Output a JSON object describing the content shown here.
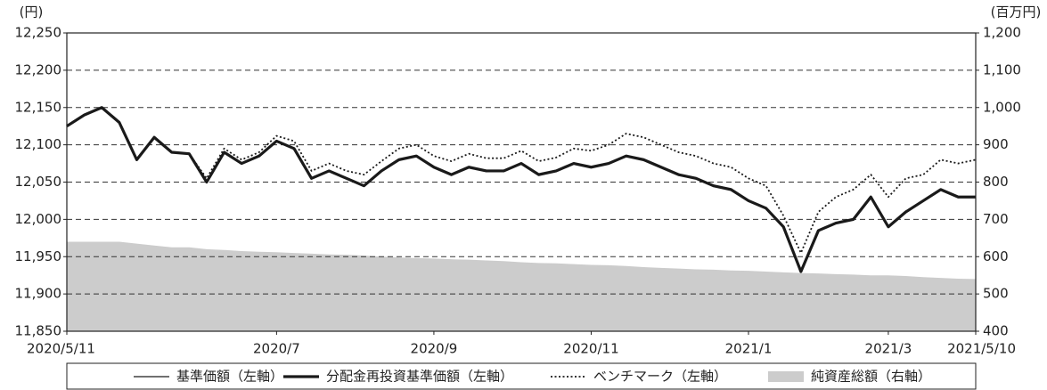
{
  "chart_data": {
    "type": "line",
    "y_unit": "(円)",
    "y2_unit": "(百万円)",
    "categories": [
      "2020/5/11",
      null,
      null,
      null,
      null,
      null,
      null,
      null,
      null,
      null,
      null,
      null,
      "2020/7",
      null,
      null,
      null,
      null,
      null,
      null,
      null,
      null,
      "2020/9",
      null,
      null,
      null,
      null,
      null,
      null,
      null,
      null,
      "2020/11",
      null,
      null,
      null,
      null,
      null,
      null,
      null,
      null,
      "2021/1",
      null,
      null,
      null,
      null,
      null,
      null,
      null,
      "2021/3",
      null,
      null,
      null,
      null,
      "2021/5/10"
    ],
    "ylim": [
      11850,
      12250
    ],
    "yticks": [
      {
        "value": 11850,
        "label": "11,850"
      },
      {
        "value": 11900,
        "label": "11,900"
      },
      {
        "value": 11950,
        "label": "11,950"
      },
      {
        "value": 12000,
        "label": "12,000"
      },
      {
        "value": 12050,
        "label": "12,050"
      },
      {
        "value": 12100,
        "label": "12,100"
      },
      {
        "value": 12150,
        "label": "12,150"
      },
      {
        "value": 12200,
        "label": "12,200"
      },
      {
        "value": 12250,
        "label": "12,250"
      }
    ],
    "y2lim": [
      400,
      1200
    ],
    "y2ticks": [
      400,
      500,
      600,
      700,
      800,
      900,
      {
        "value": 1000,
        "label": "1,000"
      },
      {
        "value": 1100,
        "label": "1,100"
      },
      {
        "value": 1200,
        "label": "1,200"
      }
    ],
    "grid": true,
    "series": [
      {
        "name": "基準価額（左軸）",
        "color": "#1a1a1a",
        "style": "thin",
        "values": [
          12125,
          12140,
          12150,
          12130,
          12080,
          12110,
          12090,
          12088,
          12050,
          12090,
          12075,
          12085,
          12105,
          12095,
          12055,
          12065,
          12055,
          12045,
          12065,
          12080,
          12085,
          12070,
          12060,
          12070,
          12065,
          12065,
          12075,
          12060,
          12065,
          12075,
          12070,
          12075,
          12085,
          12080,
          12070,
          12060,
          12055,
          12045,
          12040,
          12025,
          12015,
          11990,
          11930,
          11985,
          11995,
          12000,
          12030,
          11990,
          12010,
          12025,
          12040,
          12030,
          12030
        ]
      },
      {
        "name": "分配金再投資基準価額（左軸）",
        "color": "#1a1a1a",
        "style": "thick",
        "values": [
          12125,
          12140,
          12150,
          12130,
          12080,
          12110,
          12090,
          12088,
          12050,
          12090,
          12075,
          12085,
          12105,
          12095,
          12055,
          12065,
          12055,
          12045,
          12065,
          12080,
          12085,
          12070,
          12060,
          12070,
          12065,
          12065,
          12075,
          12060,
          12065,
          12075,
          12070,
          12075,
          12085,
          12080,
          12070,
          12060,
          12055,
          12045,
          12040,
          12025,
          12015,
          11990,
          11930,
          11985,
          11995,
          12000,
          12030,
          11990,
          12010,
          12025,
          12040,
          12030,
          12030
        ]
      },
      {
        "name": "ベンチマーク（左軸）",
        "color": "#1a1a1a",
        "style": "dotted",
        "values": [
          12125,
          12140,
          12150,
          12130,
          12080,
          12110,
          12090,
          12088,
          12055,
          12095,
          12080,
          12090,
          12112,
          12105,
          12065,
          12075,
          12065,
          12060,
          12078,
          12095,
          12100,
          12085,
          12078,
          12088,
          12082,
          12082,
          12092,
          12078,
          12083,
          12095,
          12092,
          12100,
          12115,
          12110,
          12100,
          12090,
          12085,
          12075,
          12070,
          12055,
          12045,
          12005,
          11955,
          12010,
          12030,
          12040,
          12060,
          12030,
          12055,
          12060,
          12080,
          12075,
          12080
        ]
      },
      {
        "name": "純資産総額（右軸）",
        "color": "#cccccc",
        "style": "area",
        "axis": "y2",
        "values": [
          640,
          640,
          640,
          640,
          635,
          630,
          625,
          625,
          620,
          618,
          615,
          613,
          612,
          610,
          608,
          606,
          605,
          603,
          600,
          598,
          596,
          595,
          593,
          592,
          590,
          588,
          585,
          583,
          582,
          580,
          578,
          577,
          575,
          572,
          570,
          568,
          566,
          565,
          563,
          562,
          560,
          558,
          556,
          555,
          553,
          552,
          550,
          550,
          548,
          545,
          543,
          541,
          540
        ]
      }
    ]
  }
}
